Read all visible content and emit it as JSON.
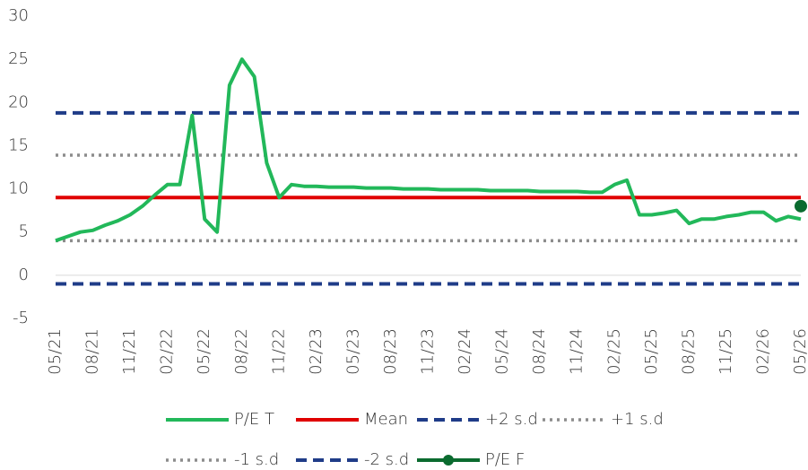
{
  "chart_data": {
    "type": "line",
    "categories": [
      "05/21",
      null,
      null,
      "08/21",
      null,
      null,
      "11/21",
      null,
      null,
      "02/22",
      null,
      null,
      "05/22",
      null,
      null,
      "08/22",
      null,
      null,
      "11/22",
      null,
      null,
      "02/23",
      null,
      null,
      "05/23",
      null,
      null,
      "08/23",
      null,
      null,
      "11/23",
      null,
      null,
      "02/24",
      null,
      null,
      "05/24",
      null,
      null,
      "08/24",
      null,
      null,
      "11/24",
      null,
      null,
      "02/25",
      null,
      null,
      "05/25",
      null,
      null,
      "08/25",
      null,
      null,
      "11/25",
      null,
      null,
      "02/26",
      null,
      null,
      "05/26"
    ],
    "series": [
      {
        "name": "P/E T",
        "color": "#22b85a",
        "style": "solid",
        "values": [
          4,
          4.5,
          5,
          5.2,
          5.8,
          6.3,
          7,
          8,
          9.3,
          10.5,
          10.5,
          18.5,
          6.5,
          5,
          22,
          25,
          23,
          13,
          9,
          10.5,
          10.3,
          10.3,
          10.2,
          10.2,
          10.2,
          10.1,
          10.1,
          10.1,
          10.0,
          10.0,
          10.0,
          9.9,
          9.9,
          9.9,
          9.9,
          9.8,
          9.8,
          9.8,
          9.8,
          9.7,
          9.7,
          9.7,
          9.7,
          9.6,
          9.6,
          10.5,
          11,
          7,
          7,
          7.2,
          7.5,
          6,
          6.5,
          6.5,
          6.8,
          7,
          7.3,
          7.3,
          6.3,
          6.8,
          6.5
        ]
      },
      {
        "name": "Mean",
        "color": "#e00000",
        "style": "solid",
        "value": 9
      },
      {
        "name": "+2 s.d",
        "color": "#1f3c88",
        "style": "dashed",
        "value": 18.8
      },
      {
        "name": "+1 s.d",
        "color": "#8c8c8c",
        "style": "dotted",
        "value": 13.9
      },
      {
        "name": "-1 s.d",
        "color": "#8c8c8c",
        "style": "dotted",
        "value": 4
      },
      {
        "name": "-2 s.d",
        "color": "#1f3c88",
        "style": "dashed",
        "value": -1
      },
      {
        "name": "P/E F",
        "color": "#0b6b2f",
        "style": "marker",
        "x": [
          "05/26"
        ],
        "values": [
          8
        ]
      }
    ],
    "ylim": [
      -5,
      30
    ],
    "yticks": [
      -5,
      0,
      5,
      10,
      15,
      20,
      25,
      30
    ]
  }
}
